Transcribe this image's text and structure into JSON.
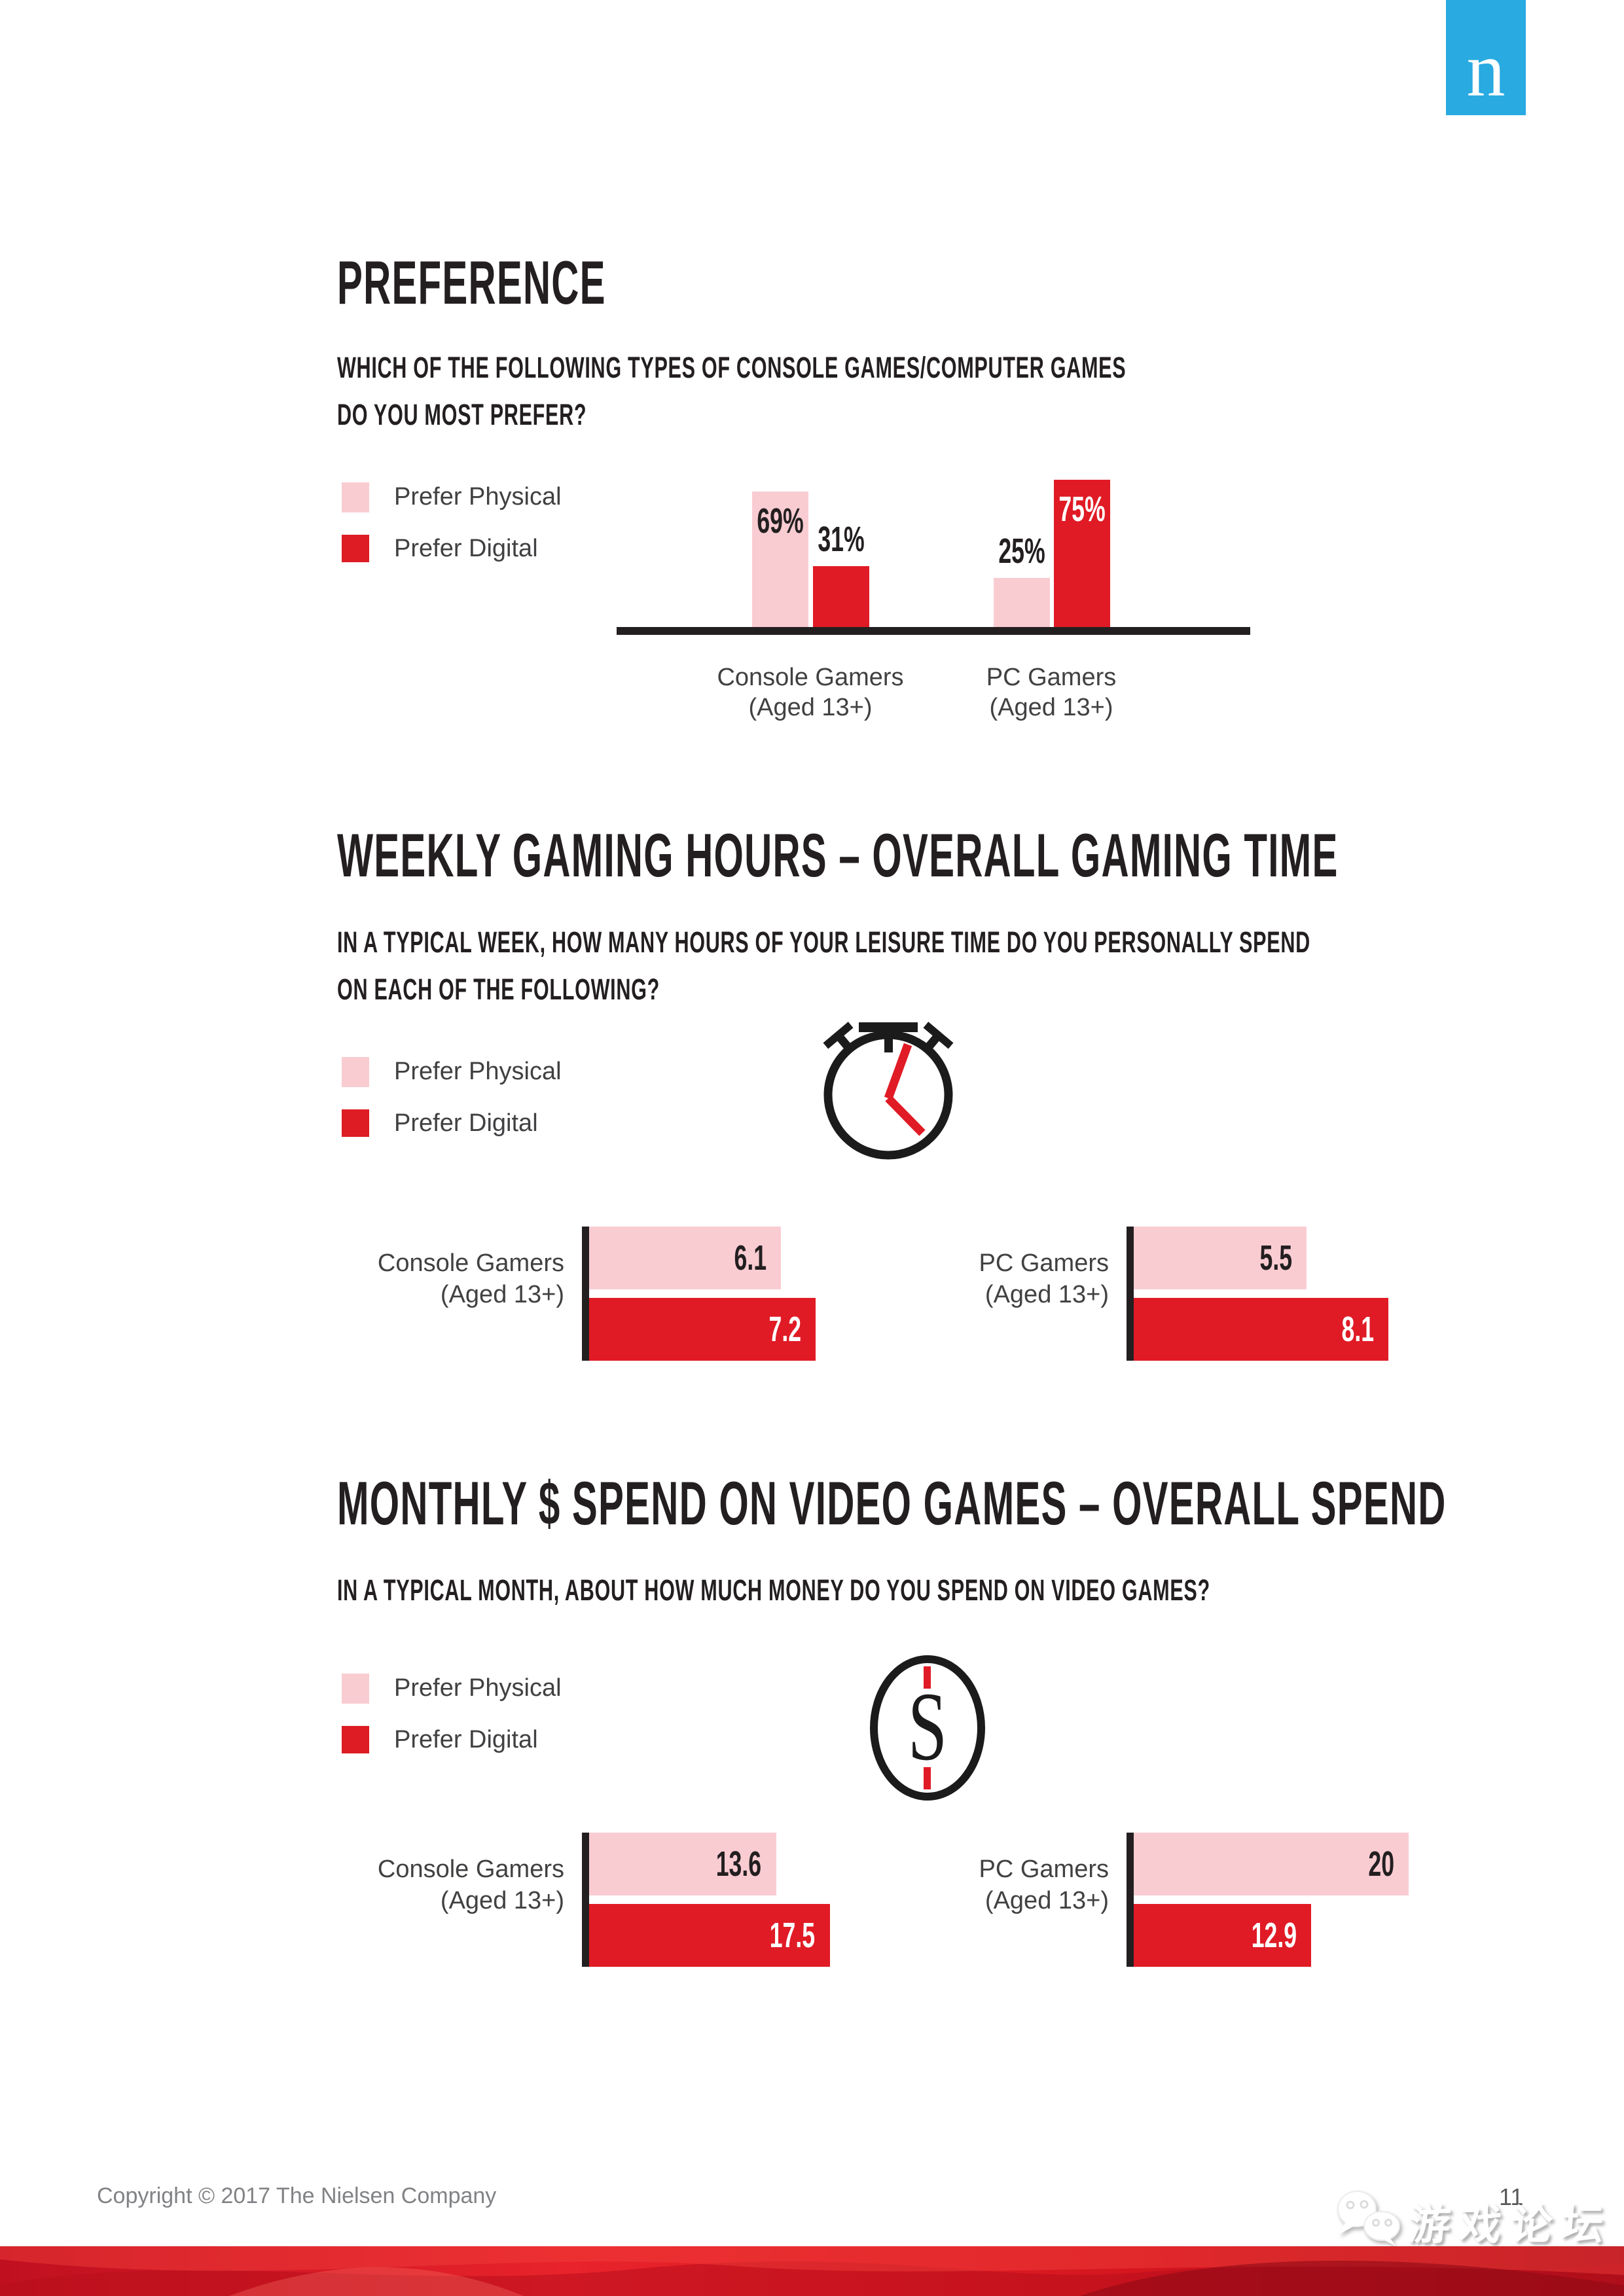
{
  "logo": {
    "letter": "n",
    "color": "#29AAE1"
  },
  "colors": {
    "pink": "#F9CCD2",
    "red": "#E01B25",
    "dark": "#231F20",
    "label_gray": "#414042",
    "footer_gray": "#808285"
  },
  "legend": {
    "physical": "Prefer Physical",
    "digital": "Prefer Digital"
  },
  "groups": {
    "console_line1": "Console Gamers",
    "console_line2": "(Aged 13+)",
    "pc_line1": "PC Gamers",
    "pc_line2": "(Aged 13+)"
  },
  "sections": {
    "preference": {
      "title": "PREFERENCE",
      "question_line1": "WHICH OF THE FOLLOWING TYPES OF CONSOLE GAMES/COMPUTER GAMES",
      "question_line2": "DO YOU MOST PREFER?"
    },
    "hours": {
      "title": "WEEKLY GAMING HOURS – OVERALL GAMING TIME",
      "question_line1": "IN A TYPICAL WEEK, HOW MANY HOURS OF YOUR LEISURE TIME DO YOU PERSONALLY SPEND",
      "question_line2": "ON EACH OF THE FOLLOWING?"
    },
    "spend": {
      "title": "MONTHLY $ SPEND ON VIDEO GAMES – OVERALL SPEND",
      "question_line1": "IN A TYPICAL MONTH, ABOUT HOW MUCH MONEY DO YOU SPEND ON VIDEO GAMES?"
    }
  },
  "chart_data": [
    {
      "type": "bar",
      "orientation": "vertical",
      "title": "PREFERENCE",
      "question": "WHICH OF THE FOLLOWING TYPES OF CONSOLE GAMES/COMPUTER GAMES DO YOU MOST PREFER?",
      "categories": [
        "Console Gamers (Aged 13+)",
        "PC Gamers (Aged 13+)"
      ],
      "unit": "%",
      "ylim": [
        0,
        100
      ],
      "legend_position": "left",
      "grid": false,
      "series": [
        {
          "name": "Prefer Physical",
          "values": [
            69,
            25
          ],
          "value_labels": [
            "69%",
            "25%"
          ]
        },
        {
          "name": "Prefer Digital",
          "values": [
            31,
            75
          ],
          "value_labels": [
            "31%",
            "75%"
          ]
        }
      ]
    },
    {
      "type": "bar",
      "orientation": "horizontal",
      "title": "WEEKLY GAMING HOURS – OVERALL GAMING TIME",
      "question": "IN A TYPICAL WEEK, HOW MANY HOURS OF YOUR LEISURE TIME DO YOU PERSONALLY SPEND ON EACH OF THE FOLLOWING?",
      "categories": [
        "Console Gamers (Aged 13+)",
        "PC Gamers (Aged 13+)"
      ],
      "unit": "hours per week",
      "icon": "stopwatch-icon",
      "legend_position": "left",
      "grid": false,
      "series": [
        {
          "name": "Prefer Physical",
          "values": [
            6.1,
            5.5
          ],
          "value_labels": [
            "6.1",
            "5.5"
          ]
        },
        {
          "name": "Prefer Digital",
          "values": [
            7.2,
            8.1
          ],
          "value_labels": [
            "7.2",
            "8.1"
          ]
        }
      ]
    },
    {
      "type": "bar",
      "orientation": "horizontal",
      "title": "MONTHLY $ SPEND ON VIDEO GAMES – OVERALL SPEND",
      "question": "IN A TYPICAL MONTH, ABOUT HOW MUCH MONEY DO YOU SPEND ON VIDEO GAMES?",
      "categories": [
        "Console Gamers (Aged 13+)",
        "PC Gamers (Aged 13+)"
      ],
      "unit": "dollars per month",
      "icon": "dollar-icon",
      "legend_position": "left",
      "grid": false,
      "series": [
        {
          "name": "Prefer Physical",
          "values": [
            13.6,
            20
          ],
          "value_labels": [
            "13.6",
            "20"
          ]
        },
        {
          "name": "Prefer Digital",
          "values": [
            17.5,
            12.9
          ],
          "value_labels": [
            "17.5",
            "12.9"
          ]
        }
      ]
    }
  ],
  "icons": {
    "dollar_letter": "S"
  },
  "footer": {
    "copyright": "Copyright © 2017 The Nielsen Company",
    "page_number": "11",
    "watermark_text": "游戏论坛"
  }
}
